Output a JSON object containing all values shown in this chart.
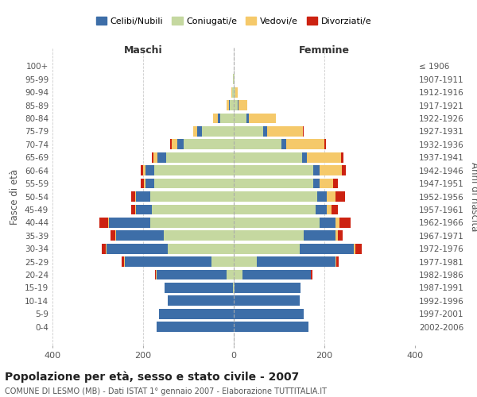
{
  "age_groups": [
    "0-4",
    "5-9",
    "10-14",
    "15-19",
    "20-24",
    "25-29",
    "30-34",
    "35-39",
    "40-44",
    "45-49",
    "50-54",
    "55-59",
    "60-64",
    "65-69",
    "70-74",
    "75-79",
    "80-84",
    "85-89",
    "90-94",
    "95-99",
    "100+"
  ],
  "birth_years": [
    "2002-2006",
    "1997-2001",
    "1992-1996",
    "1987-1991",
    "1982-1986",
    "1977-1981",
    "1972-1976",
    "1967-1971",
    "1962-1966",
    "1957-1961",
    "1952-1956",
    "1947-1951",
    "1942-1946",
    "1937-1941",
    "1932-1936",
    "1927-1931",
    "1922-1926",
    "1917-1921",
    "1912-1916",
    "1907-1911",
    "≤ 1906"
  ],
  "male": {
    "celibi": [
      170,
      165,
      145,
      150,
      155,
      190,
      135,
      105,
      90,
      35,
      30,
      20,
      20,
      18,
      15,
      10,
      5,
      2,
      1,
      0,
      0
    ],
    "coniugati": [
      0,
      0,
      0,
      2,
      15,
      50,
      145,
      155,
      185,
      180,
      185,
      175,
      175,
      150,
      110,
      70,
      30,
      8,
      3,
      1,
      0
    ],
    "vedovi": [
      0,
      0,
      0,
      0,
      2,
      2,
      2,
      2,
      2,
      2,
      2,
      3,
      5,
      10,
      12,
      10,
      10,
      5,
      1,
      0,
      0
    ],
    "divorziati": [
      0,
      0,
      0,
      0,
      2,
      5,
      10,
      10,
      20,
      10,
      10,
      8,
      5,
      3,
      3,
      0,
      0,
      0,
      0,
      0,
      0
    ]
  },
  "female": {
    "nubili": [
      165,
      155,
      145,
      145,
      150,
      175,
      120,
      70,
      35,
      25,
      20,
      15,
      14,
      12,
      10,
      8,
      5,
      2,
      1,
      0,
      0
    ],
    "coniugate": [
      0,
      0,
      0,
      2,
      20,
      50,
      145,
      155,
      190,
      180,
      185,
      175,
      175,
      150,
      105,
      65,
      28,
      8,
      3,
      1,
      0
    ],
    "vedove": [
      0,
      0,
      0,
      0,
      1,
      2,
      3,
      5,
      8,
      10,
      20,
      30,
      50,
      75,
      85,
      80,
      60,
      20,
      5,
      1,
      0
    ],
    "divorziate": [
      0,
      0,
      0,
      0,
      2,
      5,
      15,
      10,
      25,
      15,
      20,
      10,
      8,
      5,
      3,
      2,
      0,
      0,
      0,
      0,
      0
    ]
  },
  "colors": {
    "celibi_nubili": "#3d6ea8",
    "coniugati": "#c5d8a0",
    "vedovi": "#f5c96a",
    "divorziati": "#cc2211"
  },
  "xlim": 400,
  "title": "Popolazione per età, sesso e stato civile - 2007",
  "subtitle": "COMUNE DI LESMO (MB) - Dati ISTAT 1° gennaio 2007 - Elaborazione TUTTITALIA.IT",
  "ylabel_left": "Fasce di età",
  "ylabel_right": "Anni di nascita",
  "xlabel_left": "Maschi",
  "xlabel_right": "Femmine",
  "background_color": "#ffffff",
  "grid_color": "#cccccc"
}
